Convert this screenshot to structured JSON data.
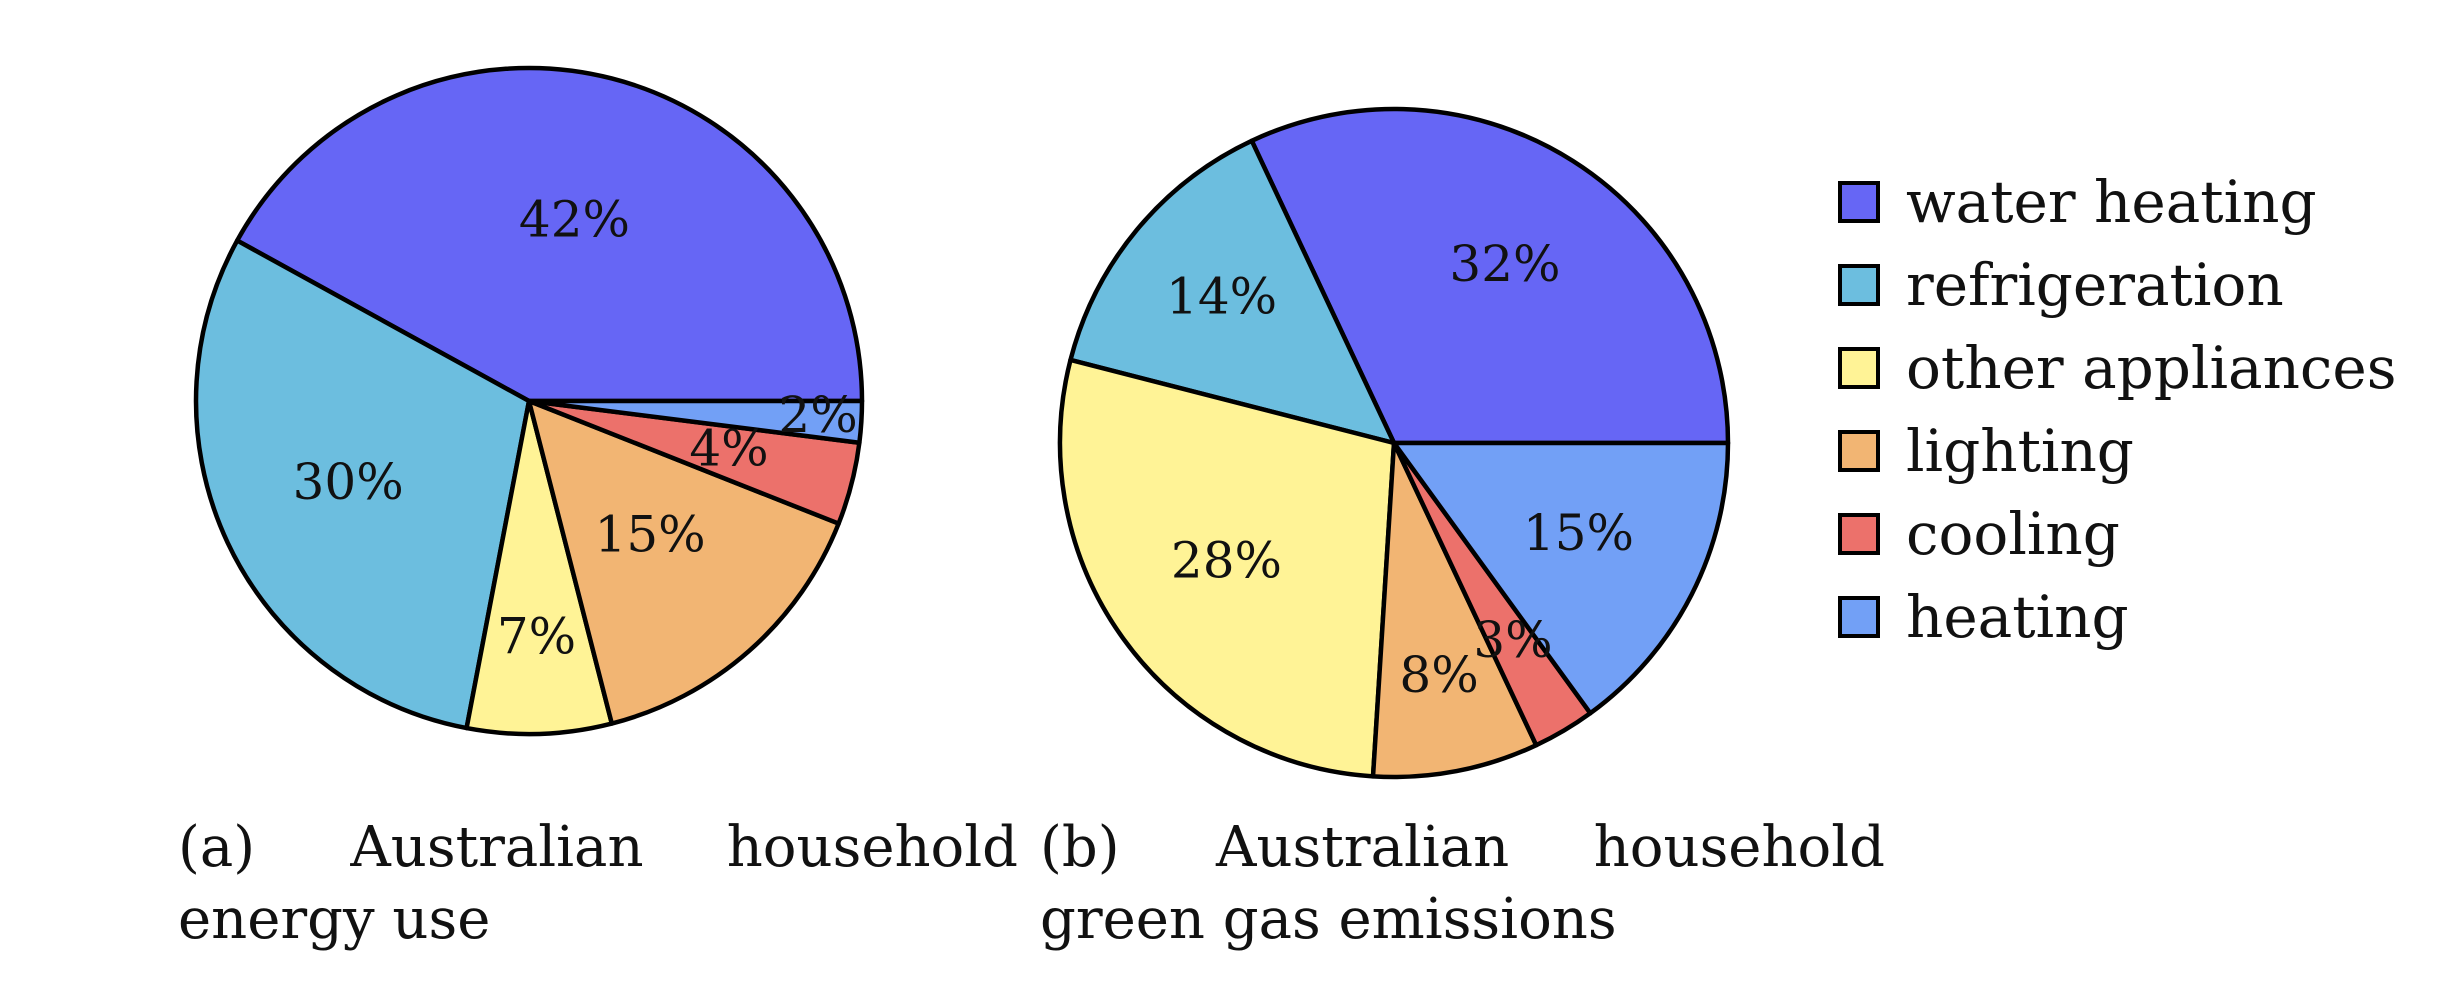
{
  "chart_data": [
    {
      "type": "pie",
      "tag": "(a)",
      "caption": "Australian household energy use",
      "slices": [
        {
          "category": "water heating",
          "value": 42,
          "label": "42%"
        },
        {
          "category": "refrigeration",
          "value": 30,
          "label": "30%"
        },
        {
          "category": "other appliances",
          "value": 7,
          "label": "7%"
        },
        {
          "category": "lighting",
          "value": 15,
          "label": "15%"
        },
        {
          "category": "cooling",
          "value": 4,
          "label": "4%"
        },
        {
          "category": "heating",
          "value": 2,
          "label": "2%"
        }
      ]
    },
    {
      "type": "pie",
      "tag": "(b)",
      "caption": "Australian household green gas emissions",
      "slices": [
        {
          "category": "water heating",
          "value": 32,
          "label": "32%"
        },
        {
          "category": "refrigeration",
          "value": 14,
          "label": "14%"
        },
        {
          "category": "other appliances",
          "value": 28,
          "label": "28%"
        },
        {
          "category": "lighting",
          "value": 8,
          "label": "8%"
        },
        {
          "category": "cooling",
          "value": 3,
          "label": "3%"
        },
        {
          "category": "heating",
          "value": 15,
          "label": "15%"
        }
      ]
    }
  ],
  "legend": {
    "placement": "right",
    "items": [
      {
        "label": "water heating",
        "color": "#6666f5"
      },
      {
        "label": "refrigeration",
        "color": "#6cbedf"
      },
      {
        "label": "other appliances",
        "color": "#fff396"
      },
      {
        "label": "lighting",
        "color": "#f2b573"
      },
      {
        "label": "cooling",
        "color": "#ec716b"
      },
      {
        "label": "heating",
        "color": "#72a0f6"
      }
    ]
  }
}
